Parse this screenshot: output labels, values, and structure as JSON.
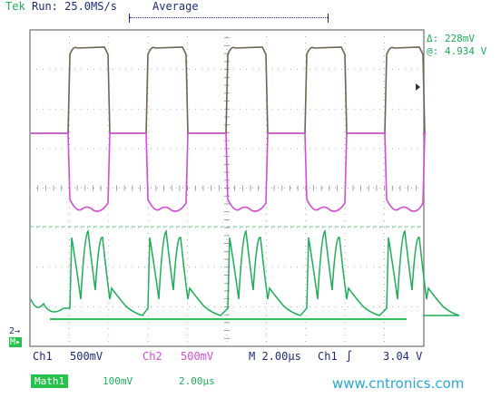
{
  "header": {
    "brand": "Tek",
    "run_status": "Run: 25.0MS/s",
    "acquire_mode": "Average"
  },
  "measurement": {
    "delta": "Δ: 228mV",
    "at": "@: 4.934 V"
  },
  "markers": {
    "ch2_ref": "2→",
    "math_ref": "M▸"
  },
  "status_bar": {
    "ch1_label": "Ch1",
    "ch1_scale": "500mV",
    "ch2_label": "Ch2",
    "ch2_scale": "500mV",
    "timebase": "M 2.00µs",
    "trigger_source": "Ch1",
    "trigger_slope": "∫",
    "trigger_level": "3.04 V"
  },
  "math_bar": {
    "label": "Math1",
    "scale": "100mV",
    "timebase": "2.00µs"
  },
  "watermark": "www.cntronics.com",
  "colors": {
    "ch1": "#6e6452",
    "ch2": "#d24fd2",
    "math": "#1fae59",
    "grid": "#8a8a8a",
    "text": "#1d2a7a",
    "watermark": "#2aa7d6"
  }
}
